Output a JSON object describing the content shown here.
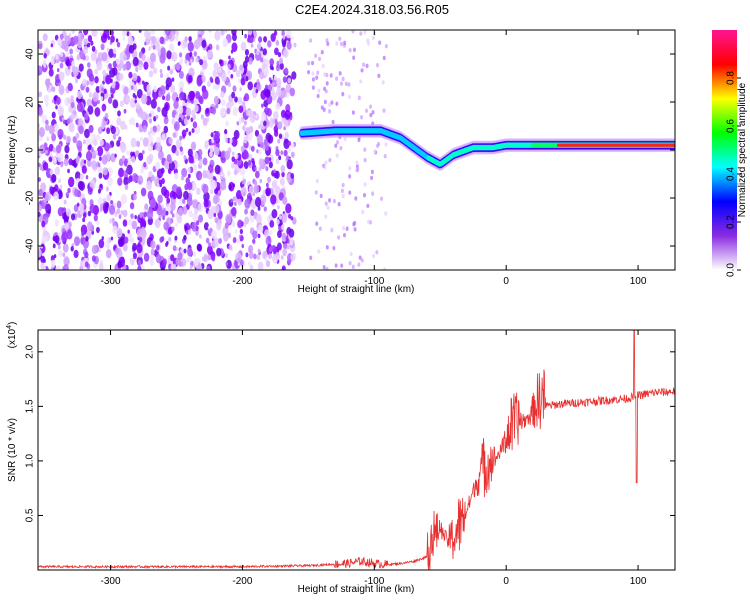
{
  "title": "C2E4.2024.318.03.56.R05",
  "chart_data": [
    {
      "type": "heatmap",
      "xlabel": "Height of straight line (km)",
      "ylabel": "Frequency (Hz)",
      "xlim": [
        -355,
        128
      ],
      "ylim": [
        -50,
        50
      ],
      "x_ticks": [
        -300,
        -200,
        -100,
        0,
        100
      ],
      "y_ticks": [
        -40,
        -20,
        0,
        20,
        40
      ],
      "colorbar": {
        "label": "Normalized spectral amplitude",
        "range": [
          0,
          1
        ],
        "ticks": [
          "0.0",
          "0.2",
          "0.4",
          "0.6",
          "0.8"
        ],
        "colormap": [
          "#ffffff",
          "#8a2be2",
          "#0000ff",
          "#00ffff",
          "#00ff00",
          "#ffff00",
          "#ff0000",
          "#ff1493"
        ]
      },
      "noise_region_x": [
        -355,
        -160
      ],
      "sparse_noise_x": [
        -150,
        -90
      ],
      "signal_trace": [
        {
          "x": -155,
          "y": 7
        },
        {
          "x": -130,
          "y": 8
        },
        {
          "x": -110,
          "y": 8
        },
        {
          "x": -95,
          "y": 8
        },
        {
          "x": -80,
          "y": 5
        },
        {
          "x": -70,
          "y": 1
        },
        {
          "x": -60,
          "y": -3
        },
        {
          "x": -50,
          "y": -6
        },
        {
          "x": -40,
          "y": -2
        },
        {
          "x": -25,
          "y": 1
        },
        {
          "x": -10,
          "y": 1
        },
        {
          "x": 0,
          "y": 2
        },
        {
          "x": 20,
          "y": 2
        },
        {
          "x": 50,
          "y": 2
        },
        {
          "x": 90,
          "y": 2
        },
        {
          "x": 128,
          "y": 2
        }
      ]
    },
    {
      "type": "line",
      "xlabel": "Height of straight line (km)",
      "ylabel": "SNR (10 * v/v)",
      "y_multiplier": "(x10",
      "y_multiplier_exp": "4",
      "y_multiplier_close": ")",
      "xlim": [
        -355,
        128
      ],
      "ylim": [
        0,
        2.2
      ],
      "x_ticks": [
        -300,
        -200,
        -100,
        0,
        100
      ],
      "y_ticks": [
        "0.5",
        "1.0",
        "1.5",
        "2.0"
      ],
      "line_color": "#e83030",
      "series": [
        {
          "x": [
            -355,
            -300,
            -250,
            -200,
            -150,
            -120,
            -110,
            -100,
            -90,
            -80,
            -70,
            -60,
            -55,
            -50,
            -45,
            -40,
            -35,
            -30,
            -25,
            -20,
            -15,
            -10,
            -5,
            0,
            5,
            10,
            15,
            20,
            25,
            30,
            40,
            50,
            60,
            70,
            80,
            90,
            95,
            100,
            105,
            110,
            115,
            120,
            128
          ],
          "y": [
            0.03,
            0.03,
            0.03,
            0.03,
            0.04,
            0.06,
            0.08,
            0.06,
            0.05,
            0.06,
            0.08,
            0.12,
            0.2,
            0.35,
            0.25,
            0.2,
            0.3,
            0.5,
            0.7,
            0.8,
            0.85,
            0.95,
            1.05,
            1.15,
            1.2,
            1.3,
            1.35,
            1.4,
            1.45,
            1.5,
            1.52,
            1.53,
            1.54,
            1.55,
            1.56,
            1.57,
            1.58,
            1.6,
            1.61,
            1.62,
            1.63,
            1.63,
            1.64
          ]
        }
      ],
      "spikes": [
        {
          "x": 97,
          "y": 2.2
        },
        {
          "x": 99,
          "y": 0.8
        }
      ]
    }
  ]
}
